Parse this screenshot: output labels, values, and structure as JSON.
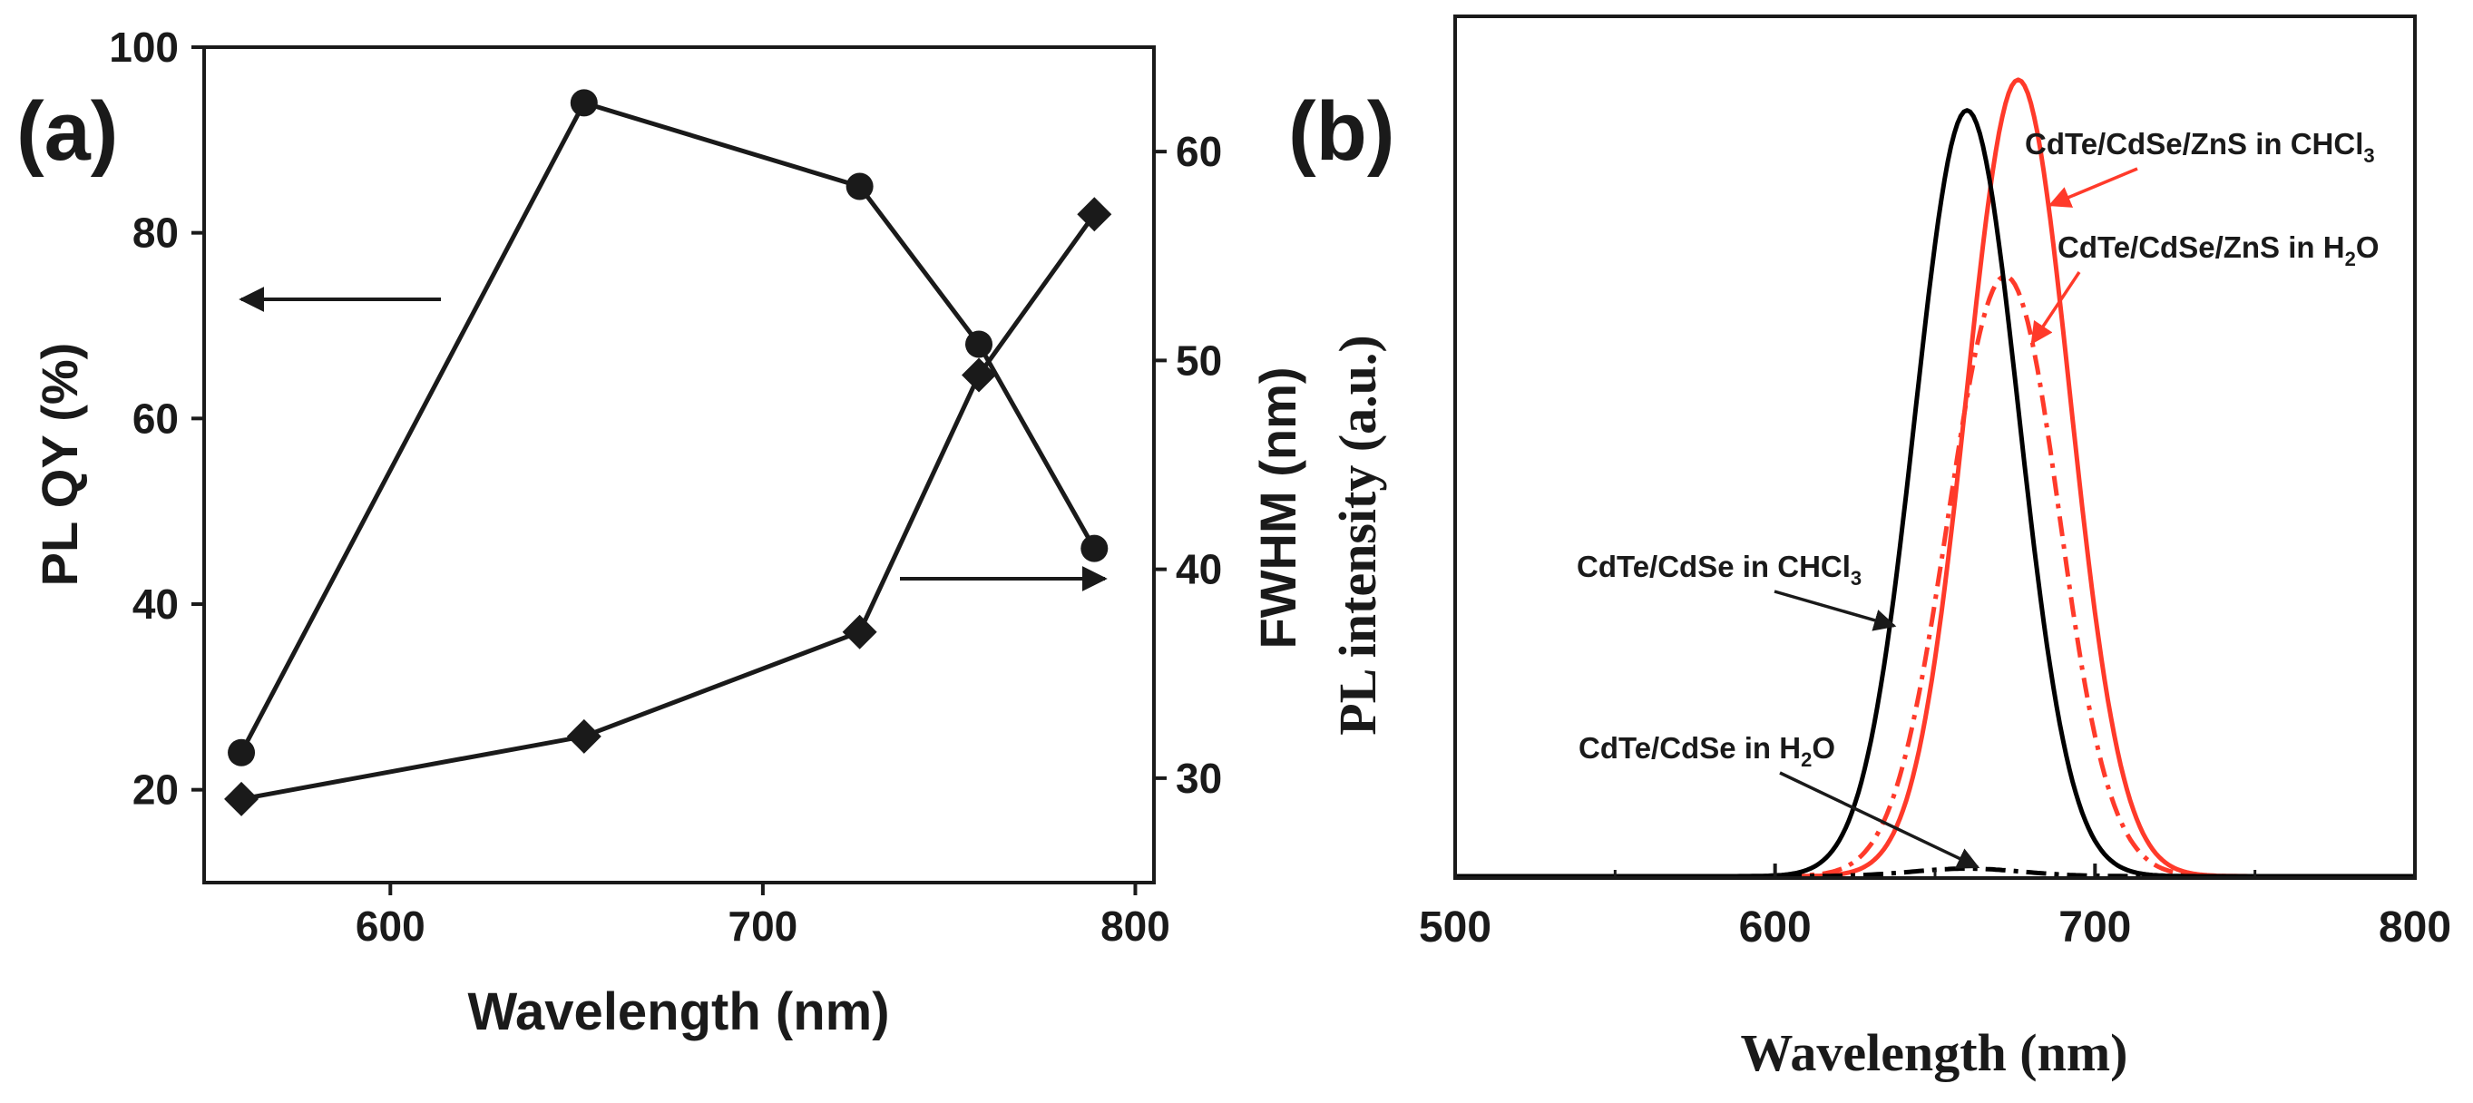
{
  "chart_data": [
    {
      "id": "a",
      "panel_label": "(a)",
      "type": "line",
      "x_axis": {
        "label": "Wavelength (nm)",
        "range": [
          550,
          805
        ],
        "ticks": [
          600,
          700,
          800
        ]
      },
      "y_left": {
        "label": "PL QY (%)",
        "range": [
          10,
          100
        ],
        "ticks": [
          20,
          40,
          60,
          80,
          100
        ]
      },
      "y_right": {
        "label": "FWHM (nm)",
        "range": [
          25,
          65
        ],
        "ticks": [
          30,
          40,
          50,
          60
        ]
      },
      "series": [
        {
          "name": "PL QY",
          "axis": "left",
          "marker": "circle",
          "x": [
            560,
            652,
            726,
            758,
            789
          ],
          "y": [
            24,
            94,
            85,
            68,
            46
          ]
        },
        {
          "name": "FWHM",
          "axis": "right",
          "marker": "diamond",
          "x": [
            560,
            652,
            726,
            758,
            789
          ],
          "y": [
            29.0,
            32.0,
            37.0,
            49.3,
            57.0
          ]
        }
      ],
      "annotations": [
        {
          "type": "arrow",
          "direction": "left",
          "meaning": "PL QY series uses left axis"
        },
        {
          "type": "arrow",
          "direction": "right",
          "meaning": "FWHM series uses right axis"
        }
      ]
    },
    {
      "id": "b",
      "panel_label": "(b)",
      "type": "line",
      "x_axis": {
        "label": "Wavelength (nm)",
        "range": [
          500,
          800
        ],
        "ticks": [
          500,
          600,
          700,
          800
        ],
        "minor_ticks": [
          550,
          650,
          750
        ]
      },
      "y_axis": {
        "label": "PL intensity (a.u.)",
        "range": [
          0,
          1.05
        ],
        "ticks": []
      },
      "series": [
        {
          "name": "CdTe/CdSe in CHCl3",
          "color": "#000000",
          "style": "solid",
          "shape": "gaussian",
          "center": 660,
          "fwhm": 38,
          "height": 1.0
        },
        {
          "name": "CdTe/CdSe in H2O",
          "color": "#000000",
          "style": "dashdot",
          "shape": "gaussian",
          "center": 660,
          "fwhm": 40,
          "height": 0.01
        },
        {
          "name": "CdTe/CdSe/ZnS in CHCl3",
          "color": "#ff3a2a",
          "style": "solid",
          "shape": "gaussian",
          "center": 676,
          "fwhm": 38,
          "height": 1.04
        },
        {
          "name": "CdTe/CdSe/ZnS in H2O",
          "color": "#ff3a2a",
          "style": "dashdot",
          "shape": "gaussian",
          "center": 671,
          "fwhm": 40,
          "height": 0.77
        }
      ],
      "annotations": [
        {
          "name_base": "CdTe/CdSe/ZnS in CHCl",
          "subscript": "3",
          "points_to": "CdTe/CdSe/ZnS in CHCl3"
        },
        {
          "name_base": "CdTe/CdSe/ZnS in H",
          "subscript": "2",
          "name_tail": "O",
          "points_to": "CdTe/CdSe/ZnS in H2O"
        },
        {
          "name_base": "CdTe/CdSe in CHCl",
          "subscript": "3",
          "points_to": "CdTe/CdSe in CHCl3"
        },
        {
          "name_base": "CdTe/CdSe in H",
          "subscript": "2",
          "name_tail": "O",
          "points_to": "CdTe/CdSe in H2O"
        }
      ]
    }
  ]
}
